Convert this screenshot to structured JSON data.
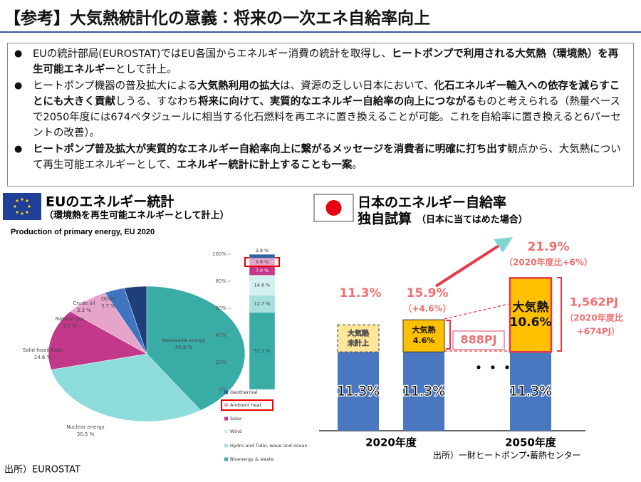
{
  "title": "【参考】大気熱統計化の意義：将来の一次エネ自給率向上",
  "bullets": [
    [
      {
        "text": "EUの統計部局(EUROSTAT)ではEU各国からエネルギー消費の統計を取得し、",
        "bold": false
      },
      {
        "text": "ヒートポンプで利用される大気熱（環境熱）を再生可能エネルギー",
        "bold": true
      },
      {
        "text": "として計上。",
        "bold": false
      }
    ],
    [
      {
        "text": "ヒートポンプ機器の普及拡大による",
        "bold": false
      },
      {
        "text": "大気熱利用の拡大",
        "bold": true
      },
      {
        "text": "は、資源の乏しい日本において、",
        "bold": false
      },
      {
        "text": "化石エネルギー輸入への依存を減らすことにも大きく貢献",
        "bold": true
      },
      {
        "text": "しうる、すなわち",
        "bold": false
      },
      {
        "text": "将来に向けて、実質的なエネルギー自給率の向上につながる",
        "bold": true
      },
      {
        "text": "ものと考えられる（熱量ベースで2050年度には674ペタジュールに相当する化石燃料を再エネに置き換えることが可能。これを自給率に置き換えると6パーセントの改善）。",
        "bold": false
      }
    ],
    [
      {
        "text": "ヒートポンプ普及拡大が実質的なエネルギー自給率向上に繋がるメッセージを消費者に明確に打ち出す",
        "bold": true
      },
      {
        "text": "観点から、大気熱について再生可能エネルギーとして、",
        "bold": false
      },
      {
        "text": "エネルギー統計に計上することも一案",
        "bold": true
      },
      {
        "text": "。",
        "bold": false
      }
    ]
  ],
  "eu": {
    "heading": "EUのエネルギー統計",
    "subheading": "（環境熱を再生可能エネルギーとして計上）",
    "chart_title": "Production of primary energy, EU 2020",
    "pie": {
      "type": "pie",
      "categories": [
        "Renewable energy",
        "Nuclear energy",
        "Solid fossil fuels",
        "Natural gas",
        "Crude oil",
        "Other"
      ],
      "values": [
        40.8,
        30.5,
        14.6,
        7.2,
        3.3,
        3.7
      ],
      "value_labels": [
        "40.8 %",
        "30.5 %",
        "14.6 %",
        "7.2 %",
        "3.3 %",
        "3.7 %"
      ],
      "colors": [
        "#3aaca6",
        "#8ddcdb",
        "#c2388a",
        "#e6a4cb",
        "#3f74c0",
        "#1f3f7a"
      ]
    },
    "stack": {
      "type": "stacked-bar",
      "ylim": [
        0,
        100
      ],
      "yticks": [
        {
          "value": 0,
          "label": "0%"
        },
        {
          "value": 20,
          "label": "20%"
        },
        {
          "value": 40,
          "label": "40%"
        },
        {
          "value": 60,
          "label": "60%"
        },
        {
          "value": 80,
          "label": "80%"
        },
        {
          "value": 100,
          "label": "100%"
        }
      ],
      "series": [
        {
          "name": "Bioenergy & waste",
          "color": "#3aaca6",
          "values": [
            57.1
          ],
          "value_labels": [
            "57.1 %"
          ]
        },
        {
          "name": "Hydro and Tidal, wave and ocean",
          "color": "#a6dfdd",
          "values": [
            12.7
          ],
          "value_labels": [
            "12.7 %"
          ]
        },
        {
          "name": "Wind",
          "color": "#d2f0ee",
          "values": [
            14.6
          ],
          "value_labels": [
            "14.6 %"
          ]
        },
        {
          "name": "Solar",
          "color": "#c2388a",
          "values": [
            7.0
          ],
          "value_labels": [
            "7.0 %"
          ]
        },
        {
          "name": "Ambient heat",
          "color": "#e6a4cb",
          "values": [
            5.6
          ],
          "value_labels": [
            "5.6 %"
          ]
        },
        {
          "name": "Geothermal",
          "color": "#2f5f9e",
          "values": [
            2.9
          ],
          "value_labels": [
            "2.9 %"
          ]
        }
      ]
    },
    "source": "出所）EUROSTAT"
  },
  "japan": {
    "heading": "日本のエネルギー自給率",
    "heading2": "独自試算",
    "note": "（日本に当てはめた場合）",
    "chart": {
      "type": "stacked-bar",
      "base_color": "#4a78c0",
      "heat_color": "#ffc000",
      "categories": [
        {
          "label": "2020年度",
          "bars": [
            {
              "base": 11.3,
              "base_label": "11.3%",
              "heat": null,
              "heat_label": [
                "大気熱",
                "未計上"
              ],
              "total": [
                "11.3%"
              ]
            },
            {
              "base": 11.3,
              "base_label": "11.3%",
              "heat": 4.6,
              "heat_label": [
                "大気熱",
                "4.6%"
              ],
              "total": [
                "15.9%",
                "（+4.6%）"
              ],
              "pj": [
                "888PJ"
              ]
            }
          ]
        },
        {
          "label": "2050年度",
          "bars": [
            {
              "base": 11.3,
              "base_label": "11.3%",
              "heat": 10.6,
              "heat_label": [
                "大気熱",
                "10.6%"
              ],
              "total": [
                "21.9%",
                "（2020年度比+6%）"
              ],
              "pj": [
                "1,562PJ",
                "（2020年度比",
                "+674PJ）"
              ]
            }
          ]
        }
      ]
    },
    "source": "出所）一財ヒートポンプ・蓄熱センター"
  }
}
